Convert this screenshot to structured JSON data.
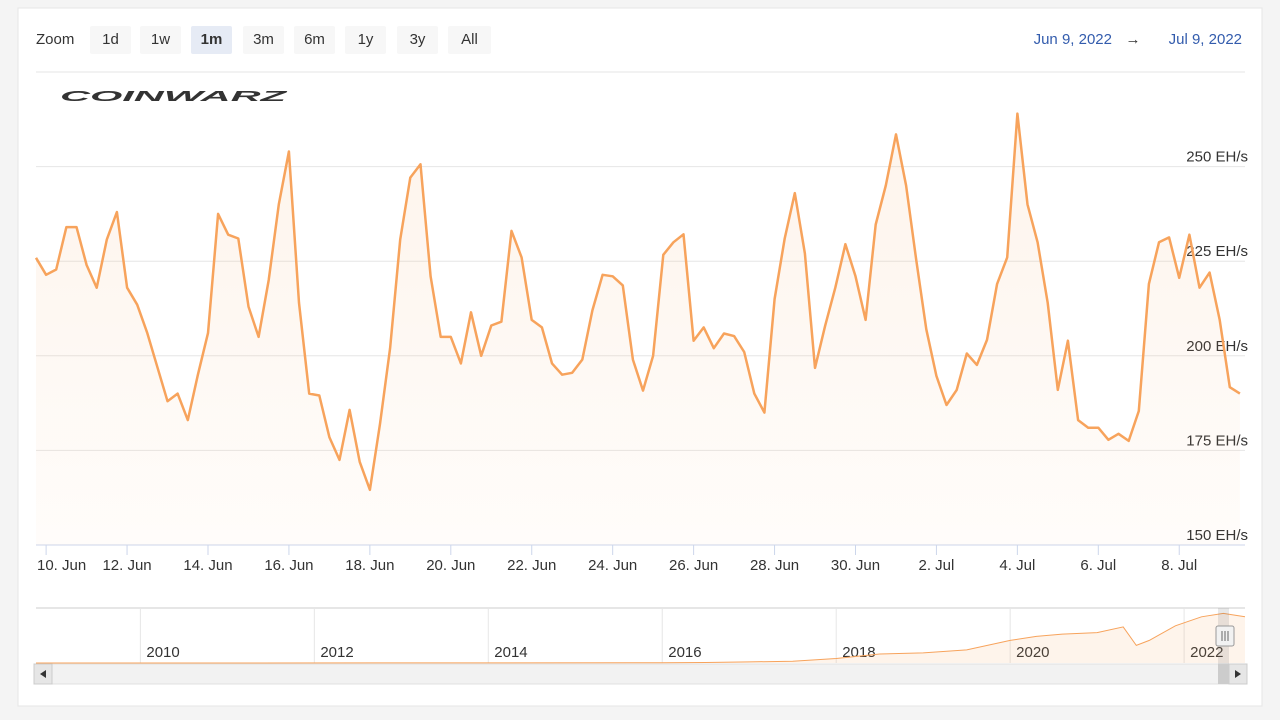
{
  "chart_data": {
    "type": "line",
    "watermark": "COINWARZ",
    "zoom": {
      "label": "Zoom",
      "buttons": [
        "1d",
        "1w",
        "1m",
        "3m",
        "6m",
        "1y",
        "3y",
        "All"
      ],
      "selected": "1m"
    },
    "range": {
      "from": "Jun 9, 2022",
      "separator": "→",
      "to": "Jul 9, 2022"
    },
    "color": "#f7a35c",
    "grid": true,
    "xlim": [
      "2022-06-09T18:00",
      "2022-07-09T15:00"
    ],
    "xticks": [
      {
        "value": "2022-06-10T00:00",
        "label": "10. Jun"
      },
      {
        "value": "2022-06-12T00:00",
        "label": "12. Jun"
      },
      {
        "value": "2022-06-14T00:00",
        "label": "14. Jun"
      },
      {
        "value": "2022-06-16T00:00",
        "label": "16. Jun"
      },
      {
        "value": "2022-06-18T00:00",
        "label": "18. Jun"
      },
      {
        "value": "2022-06-20T00:00",
        "label": "20. Jun"
      },
      {
        "value": "2022-06-22T00:00",
        "label": "22. Jun"
      },
      {
        "value": "2022-06-24T00:00",
        "label": "24. Jun"
      },
      {
        "value": "2022-06-26T00:00",
        "label": "26. Jun"
      },
      {
        "value": "2022-06-28T00:00",
        "label": "28. Jun"
      },
      {
        "value": "2022-06-30T00:00",
        "label": "30. Jun"
      },
      {
        "value": "2022-07-02T00:00",
        "label": "2. Jul"
      },
      {
        "value": "2022-07-04T00:00",
        "label": "4. Jul"
      },
      {
        "value": "2022-07-06T00:00",
        "label": "6. Jul"
      },
      {
        "value": "2022-07-08T00:00",
        "label": "8. Jul"
      }
    ],
    "ylim": [
      150,
      275
    ],
    "yticks": [
      {
        "value": 150,
        "label": "150 EH/s"
      },
      {
        "value": 175,
        "label": "175 EH/s"
      },
      {
        "value": 200,
        "label": "200 EH/s"
      },
      {
        "value": 225,
        "label": "225 EH/s"
      },
      {
        "value": 250,
        "label": "250 EH/s"
      }
    ],
    "x": [
      "2022-06-09T18:00",
      "2022-06-10T00:00",
      "2022-06-10T06:00",
      "2022-06-10T12:00",
      "2022-06-10T18:00",
      "2022-06-11T00:00",
      "2022-06-11T06:00",
      "2022-06-11T12:00",
      "2022-06-11T18:00",
      "2022-06-12T00:00",
      "2022-06-12T06:00",
      "2022-06-12T12:00",
      "2022-06-12T18:00",
      "2022-06-13T00:00",
      "2022-06-13T06:00",
      "2022-06-13T12:00",
      "2022-06-13T18:00",
      "2022-06-14T00:00",
      "2022-06-14T06:00",
      "2022-06-14T12:00",
      "2022-06-14T18:00",
      "2022-06-15T00:00",
      "2022-06-15T06:00",
      "2022-06-15T12:00",
      "2022-06-15T18:00",
      "2022-06-16T00:00",
      "2022-06-16T06:00",
      "2022-06-16T12:00",
      "2022-06-16T18:00",
      "2022-06-17T00:00",
      "2022-06-17T06:00",
      "2022-06-17T12:00",
      "2022-06-17T18:00",
      "2022-06-18T00:00",
      "2022-06-18T06:00",
      "2022-06-18T12:00",
      "2022-06-18T18:00",
      "2022-06-19T00:00",
      "2022-06-19T06:00",
      "2022-06-19T12:00",
      "2022-06-19T18:00",
      "2022-06-20T00:00",
      "2022-06-20T06:00",
      "2022-06-20T12:00",
      "2022-06-20T18:00",
      "2022-06-21T00:00",
      "2022-06-21T06:00",
      "2022-06-21T12:00",
      "2022-06-21T18:00",
      "2022-06-22T00:00",
      "2022-06-22T06:00",
      "2022-06-22T12:00",
      "2022-06-22T18:00",
      "2022-06-23T00:00",
      "2022-06-23T06:00",
      "2022-06-23T12:00",
      "2022-06-23T18:00",
      "2022-06-24T00:00",
      "2022-06-24T06:00",
      "2022-06-24T12:00",
      "2022-06-24T18:00",
      "2022-06-25T00:00",
      "2022-06-25T06:00",
      "2022-06-25T12:00",
      "2022-06-25T18:00",
      "2022-06-26T00:00",
      "2022-06-26T06:00",
      "2022-06-26T12:00",
      "2022-06-26T18:00",
      "2022-06-27T00:00",
      "2022-06-27T06:00",
      "2022-06-27T12:00",
      "2022-06-27T18:00",
      "2022-06-28T00:00",
      "2022-06-28T06:00",
      "2022-06-28T12:00",
      "2022-06-28T18:00",
      "2022-06-29T00:00",
      "2022-06-29T06:00",
      "2022-06-29T12:00",
      "2022-06-29T18:00",
      "2022-06-30T00:00",
      "2022-06-30T06:00",
      "2022-06-30T12:00",
      "2022-06-30T18:00",
      "2022-07-01T00:00",
      "2022-07-01T06:00",
      "2022-07-01T12:00",
      "2022-07-01T18:00",
      "2022-07-02T00:00",
      "2022-07-02T06:00",
      "2022-07-02T12:00",
      "2022-07-02T18:00",
      "2022-07-03T00:00",
      "2022-07-03T06:00",
      "2022-07-03T12:00",
      "2022-07-03T18:00",
      "2022-07-04T00:00",
      "2022-07-04T06:00",
      "2022-07-04T12:00",
      "2022-07-04T18:00",
      "2022-07-05T00:00",
      "2022-07-05T06:00",
      "2022-07-05T12:00",
      "2022-07-05T18:00",
      "2022-07-06T00:00",
      "2022-07-06T06:00",
      "2022-07-06T12:00",
      "2022-07-06T18:00",
      "2022-07-07T00:00",
      "2022-07-07T06:00",
      "2022-07-07T12:00",
      "2022-07-07T18:00",
      "2022-07-08T00:00",
      "2022-07-08T06:00",
      "2022-07-08T12:00",
      "2022-07-08T18:00",
      "2022-07-09T00:00",
      "2022-07-09T06:00",
      "2022-07-09T12:00"
    ],
    "values": [
      225.9,
      221.4,
      222.8,
      234,
      234,
      224,
      218,
      230.7,
      238,
      218,
      213.5,
      206,
      197,
      188,
      190,
      183,
      195,
      206,
      237.5,
      232,
      231,
      213,
      205,
      220,
      240,
      254,
      214,
      190,
      189.5,
      178.5,
      172.5,
      185.7,
      172,
      164.6,
      182,
      202,
      230.7,
      247.1,
      250.6,
      221,
      205,
      205,
      198,
      211.5,
      200,
      208,
      209,
      233,
      226,
      209.5,
      207.5,
      198,
      195,
      195.5,
      199,
      212,
      221.4,
      221,
      218.6,
      199,
      190.8,
      200,
      226.7,
      230,
      232.1,
      204,
      207.5,
      202,
      205.9,
      205.2,
      201,
      190,
      185,
      215,
      231,
      243,
      227,
      196.8,
      207.9,
      218,
      229.5,
      221,
      209.5,
      234.7,
      245,
      258.5,
      245,
      225.4,
      207,
      194.7,
      187,
      191,
      200.6,
      197.6,
      204.2,
      219,
      226,
      264,
      240,
      230,
      214,
      191,
      204,
      183,
      181,
      181,
      177.8,
      179.4,
      177.5,
      185.4,
      219,
      230,
      231.3,
      220.6,
      232,
      218,
      222,
      209.5,
      191.7,
      190
    ],
    "navigator": {
      "xlim": [
        2008.8,
        2022.7
      ],
      "ylim": [
        0,
        235
      ],
      "xticks": [
        2010,
        2012,
        2014,
        2016,
        2018,
        2020,
        2022
      ],
      "x": [
        2008.8,
        2014,
        2016,
        2016.5,
        2017,
        2017.5,
        2018,
        2018.5,
        2019,
        2019.5,
        2020,
        2020.3,
        2020.6,
        2021,
        2021.3,
        2021.45,
        2021.6,
        2021.9,
        2022.2,
        2022.45,
        2022.7
      ],
      "values": [
        0,
        0.3,
        1.5,
        2,
        5,
        8,
        20,
        40,
        45,
        58,
        100,
        118,
        128,
        135,
        160,
        78,
        100,
        165,
        205,
        220,
        205
      ]
    }
  }
}
